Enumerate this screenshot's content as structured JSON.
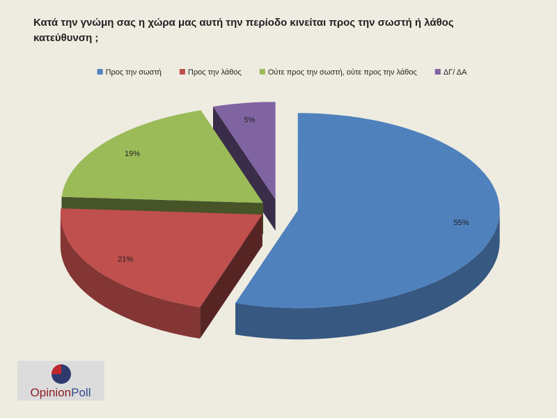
{
  "chart_data": {
    "type": "pie",
    "title": "Κατά την γνώμη σας η χώρα μας αυτή την περίοδο κινείται προς την σωστή ή λάθος κατεύθυνση ;",
    "categories": [
      "Προς την σωστή",
      "Προς την λάθος",
      "Ούτε προς την σωστή, ούτε προς την λάθος",
      "ΔΓ/ ΔΑ"
    ],
    "values": [
      55,
      21,
      19,
      5
    ],
    "value_labels": [
      "55%",
      "21%",
      "19%",
      "5%"
    ],
    "colors": [
      "#4f81bd",
      "#c0504d",
      "#9bbb59",
      "#8064a2"
    ],
    "legend": "top"
  },
  "logo": [
    "Opinion",
    "Poll"
  ]
}
